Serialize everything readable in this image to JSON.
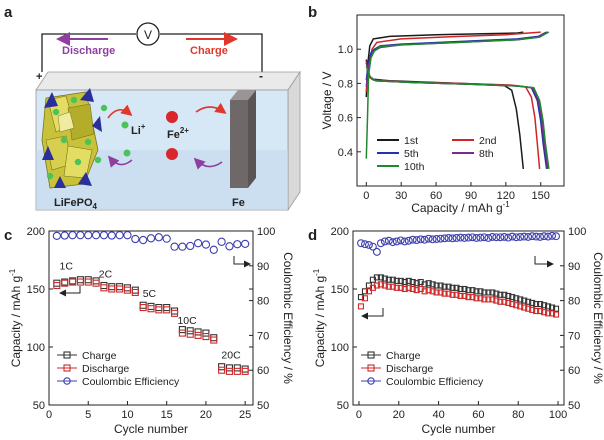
{
  "figure": {
    "panel_labels": [
      "a",
      "b",
      "c",
      "d"
    ]
  },
  "schematic": {
    "meter": "V",
    "discharge": "Discharge",
    "charge": "Charge",
    "plus": "+",
    "minus": "-",
    "ion_li": "Li",
    "ion_li_sup": "+",
    "ion_fe": "Fe",
    "ion_fe_sup": "2+",
    "cathode": "LiFePO",
    "cathode_sub": "4",
    "anode": "Fe",
    "colors": {
      "discharge": "#8e3fa0",
      "charge": "#e0392b",
      "electrolyte": "#d6e7f5",
      "electrode_fe": "#6e6868",
      "octa": "#c8c23a",
      "tetra": "#2b2f9a",
      "li_ion": "#4cc35a",
      "fe_ion": "#d9262b"
    }
  },
  "chart_data": [
    {
      "panel": "b",
      "type": "line",
      "xlabel": "Capacity / mAh g",
      "xlabel_sup": "-1",
      "ylabel": "Voltage / V",
      "xlim": [
        -8,
        170
      ],
      "ylim": [
        0.2,
        1.2
      ],
      "xticks": [
        0,
        30,
        60,
        90,
        120,
        150
      ],
      "yticks": [
        0.4,
        0.6,
        0.8,
        1.0
      ],
      "legend_position": "bottom-left",
      "series": [
        {
          "name": "1st",
          "color": "#1a1a1a",
          "charge": [
            [
              0,
              0.72
            ],
            [
              1,
              0.9
            ],
            [
              3,
              1.02
            ],
            [
              6,
              1.06
            ],
            [
              20,
              1.075
            ],
            [
              60,
              1.085
            ],
            [
              100,
              1.09
            ],
            [
              130,
              1.095
            ],
            [
              135,
              1.1
            ]
          ],
          "discharge": [
            [
              0,
              0.94
            ],
            [
              2,
              0.85
            ],
            [
              5,
              0.825
            ],
            [
              20,
              0.815
            ],
            [
              60,
              0.805
            ],
            [
              100,
              0.795
            ],
            [
              118,
              0.79
            ],
            [
              125,
              0.76
            ],
            [
              129,
              0.65
            ],
            [
              132,
              0.5
            ],
            [
              135,
              0.3
            ]
          ]
        },
        {
          "name": "2nd",
          "color": "#d02525",
          "charge": [
            [
              0,
              0.75
            ],
            [
              2,
              0.9
            ],
            [
              5,
              1.0
            ],
            [
              9,
              1.04
            ],
            [
              30,
              1.06
            ],
            [
              80,
              1.075
            ],
            [
              120,
              1.085
            ],
            [
              140,
              1.095
            ],
            [
              150,
              1.1
            ]
          ],
          "discharge": [
            [
              0,
              0.93
            ],
            [
              2,
              0.84
            ],
            [
              6,
              0.82
            ],
            [
              30,
              0.81
            ],
            [
              80,
              0.8
            ],
            [
              125,
              0.79
            ],
            [
              137,
              0.78
            ],
            [
              142,
              0.72
            ],
            [
              145,
              0.6
            ],
            [
              147,
              0.45
            ],
            [
              149,
              0.3
            ]
          ]
        },
        {
          "name": "5th",
          "color": "#2433a8",
          "charge": [
            [
              0,
              0.82
            ],
            [
              2,
              0.92
            ],
            [
              4,
              0.98
            ],
            [
              7,
              1.0
            ],
            [
              12,
              1.02
            ],
            [
              30,
              1.03
            ],
            [
              80,
              1.045
            ],
            [
              130,
              1.06
            ],
            [
              148,
              1.075
            ],
            [
              152,
              1.09
            ],
            [
              155,
              1.1
            ]
          ],
          "discharge": [
            [
              0,
              0.92
            ],
            [
              3,
              0.84
            ],
            [
              8,
              0.815
            ],
            [
              40,
              0.805
            ],
            [
              90,
              0.795
            ],
            [
              130,
              0.785
            ],
            [
              142,
              0.775
            ],
            [
              147,
              0.7
            ],
            [
              150,
              0.58
            ],
            [
              152,
              0.45
            ],
            [
              155,
              0.3
            ]
          ]
        },
        {
          "name": "8th",
          "color": "#7a2a8e",
          "charge": [
            [
              0,
              0.78
            ],
            [
              2,
              0.9
            ],
            [
              4,
              0.96
            ],
            [
              7,
              0.99
            ],
            [
              12,
              1.01
            ],
            [
              30,
              1.025
            ],
            [
              80,
              1.04
            ],
            [
              130,
              1.055
            ],
            [
              148,
              1.07
            ],
            [
              153,
              1.09
            ],
            [
              156,
              1.1
            ]
          ],
          "discharge": [
            [
              0,
              0.92
            ],
            [
              3,
              0.84
            ],
            [
              8,
              0.815
            ],
            [
              40,
              0.805
            ],
            [
              90,
              0.795
            ],
            [
              130,
              0.785
            ],
            [
              143,
              0.775
            ],
            [
              148,
              0.7
            ],
            [
              151,
              0.58
            ],
            [
              153,
              0.45
            ],
            [
              156,
              0.3
            ]
          ]
        },
        {
          "name": "10th",
          "color": "#1f8a2c",
          "charge": [
            [
              0,
              0.36
            ],
            [
              1,
              0.6
            ],
            [
              2,
              0.85
            ],
            [
              4,
              0.95
            ],
            [
              7,
              0.99
            ],
            [
              12,
              1.015
            ],
            [
              30,
              1.025
            ],
            [
              80,
              1.04
            ],
            [
              130,
              1.055
            ],
            [
              149,
              1.07
            ],
            [
              154,
              1.09
            ],
            [
              157,
              1.1
            ]
          ],
          "discharge": [
            [
              0,
              0.9
            ],
            [
              3,
              0.84
            ],
            [
              8,
              0.815
            ],
            [
              40,
              0.805
            ],
            [
              90,
              0.795
            ],
            [
              130,
              0.785
            ],
            [
              144,
              0.775
            ],
            [
              149,
              0.7
            ],
            [
              152,
              0.58
            ],
            [
              154,
              0.45
            ],
            [
              157,
              0.3
            ]
          ]
        }
      ]
    },
    {
      "panel": "c",
      "type": "scatter",
      "xlabel": "Cycle number",
      "ylabel": "Capacity / mAh g",
      "ylabel_sup": "-1",
      "y2label": "Coulombic Efficiency / %",
      "xlim": [
        0,
        26
      ],
      "ylim": [
        50,
        200
      ],
      "y2lim": [
        50,
        100
      ],
      "xticks": [
        0,
        5,
        10,
        15,
        20,
        25
      ],
      "yticks": [
        50,
        100,
        150,
        200
      ],
      "y2ticks": [
        50,
        60,
        70,
        80,
        90,
        100
      ],
      "legend_position": "bottom-left",
      "rate_labels": [
        {
          "text": "1C",
          "x": 2.2,
          "y": 167
        },
        {
          "text": "2C",
          "x": 7.2,
          "y": 160
        },
        {
          "text": "5C",
          "x": 12.8,
          "y": 143
        },
        {
          "text": "10C",
          "x": 17.6,
          "y": 120
        },
        {
          "text": "20C",
          "x": 23.2,
          "y": 90
        }
      ],
      "x": [
        1,
        2,
        3,
        4,
        5,
        6,
        7,
        8,
        9,
        10,
        11,
        12,
        13,
        14,
        15,
        16,
        17,
        18,
        19,
        20,
        21,
        22,
        23,
        24,
        25
      ],
      "series": [
        {
          "name": "Charge",
          "color": "#333333",
          "marker": "square",
          "axis": "left",
          "values": [
            155,
            156,
            157,
            158,
            158,
            157,
            153,
            152,
            152,
            151,
            149,
            136,
            135,
            134,
            134,
            131,
            115,
            114,
            113,
            112,
            108,
            83,
            82,
            82,
            81
          ]
        },
        {
          "name": "Discharge",
          "color": "#cc2a2a",
          "marker": "square",
          "axis": "left",
          "values": [
            153,
            155,
            156,
            156,
            156,
            155,
            151,
            150,
            150,
            149,
            147,
            134,
            133,
            132,
            132,
            129,
            112,
            111,
            110,
            109,
            106,
            80,
            79,
            79,
            79
          ]
        },
        {
          "name": "Coulombic Efficiency",
          "color": "#3d3db0",
          "marker": "circle",
          "axis": "right",
          "values": [
            98.6,
            98.7,
            98.8,
            98.8,
            98.8,
            98.8,
            98.8,
            98.7,
            98.8,
            98.8,
            97.7,
            97.4,
            97.9,
            98.2,
            97.8,
            95.5,
            95.5,
            95.7,
            96.5,
            96.1,
            94.6,
            96.9,
            95.6,
            96.2,
            96.3
          ]
        }
      ]
    },
    {
      "panel": "d",
      "type": "scatter",
      "xlabel": "Cycle number",
      "ylabel": "Capacity / mAh g",
      "ylabel_sup": "-1",
      "y2label": "Coulombic Efficiency / %",
      "xlim": [
        -3,
        103
      ],
      "ylim": [
        50,
        200
      ],
      "y2lim": [
        50,
        100
      ],
      "xticks": [
        0,
        20,
        40,
        60,
        80,
        100
      ],
      "yticks": [
        50,
        100,
        150,
        200
      ],
      "y2ticks": [
        50,
        60,
        70,
        80,
        90,
        100
      ],
      "legend_position": "bottom-left",
      "x": [
        1,
        3,
        5,
        7,
        9,
        11,
        13,
        15,
        17,
        19,
        21,
        23,
        25,
        27,
        29,
        31,
        33,
        35,
        37,
        39,
        41,
        43,
        45,
        47,
        49,
        51,
        53,
        55,
        57,
        59,
        61,
        63,
        65,
        67,
        69,
        71,
        73,
        75,
        77,
        79,
        81,
        83,
        85,
        87,
        89,
        91,
        93,
        95,
        97,
        99
      ],
      "series": [
        {
          "name": "Charge",
          "color": "#333333",
          "marker": "square",
          "axis": "left",
          "values": [
            143,
            148,
            153,
            158,
            160,
            160,
            159,
            158,
            158,
            157,
            157,
            156,
            157,
            156,
            155,
            156,
            154,
            155,
            154,
            153,
            153,
            152,
            152,
            151,
            151,
            150,
            150,
            149,
            149,
            148,
            148,
            147,
            147,
            147,
            146,
            145,
            145,
            144,
            143,
            142,
            141,
            140,
            139,
            138,
            137,
            137,
            136,
            135,
            134,
            133
          ]
        },
        {
          "name": "Discharge",
          "color": "#cc2a2a",
          "marker": "square",
          "axis": "left",
          "values": [
            135,
            142,
            148,
            151,
            153,
            154,
            153,
            152,
            152,
            151,
            151,
            150,
            151,
            150,
            149,
            150,
            148,
            149,
            148,
            147,
            147,
            146,
            146,
            145,
            145,
            144,
            144,
            143,
            143,
            142,
            142,
            141,
            141,
            141,
            140,
            139,
            139,
            138,
            137,
            136,
            135,
            134,
            133,
            132,
            131,
            131,
            130,
            129,
            129,
            128
          ]
        },
        {
          "name": "Coulombic Efficiency",
          "color": "#3d3db0",
          "marker": "circle",
          "axis": "right",
          "values": [
            96.5,
            96.2,
            96.0,
            95.5,
            94.0,
            96.5,
            97.0,
            97.2,
            96.8,
            97.0,
            97.3,
            97.0,
            97.2,
            97.5,
            97.4,
            97.6,
            97.5,
            97.8,
            97.6,
            97.7,
            97.8,
            97.9,
            98.0,
            97.9,
            98.0,
            98.1,
            98.0,
            98.1,
            98.2,
            98.0,
            98.1,
            98.2,
            98.0,
            98.3,
            98.2,
            98.2,
            98.3,
            98.1,
            98.4,
            98.2,
            98.3,
            98.4,
            98.3,
            98.5,
            98.4,
            98.3,
            98.5,
            98.4,
            98.6,
            98.5
          ]
        }
      ]
    }
  ]
}
